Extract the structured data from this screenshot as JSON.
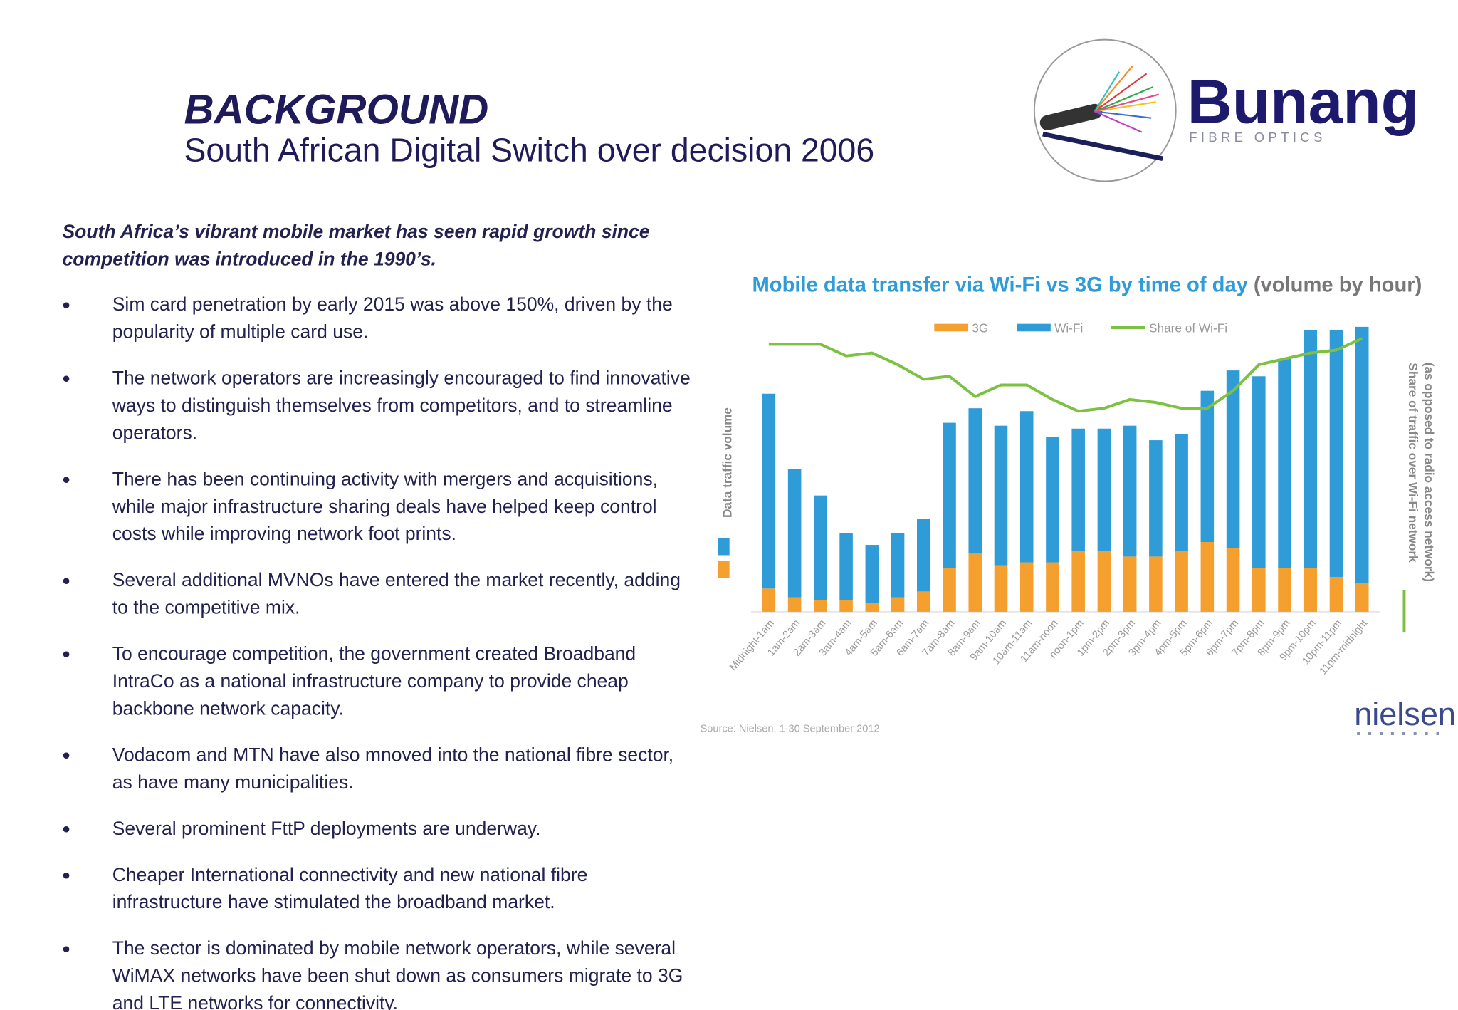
{
  "header": {
    "title": "BACKGROUND",
    "subtitle": "South African Digital Switch over decision 2006"
  },
  "logo": {
    "name": "Bunang",
    "tagline": "FIBRE OPTICS"
  },
  "intro": "South Africa’s vibrant mobile market has seen rapid growth since competition was introduced in the 1990’s.",
  "bullets": [
    "Sim card penetration by early 2015 was above 150%, driven by the popularity of multiple card use.",
    "The network operators are increasingly encouraged to find innovative ways to distinguish themselves from competitors, and to streamline operators.",
    "There has been continuing activity with mergers and acquisitions, while major infrastructure sharing deals have helped keep control costs while improving network foot prints.",
    "Several additional MVNOs have entered the market recently, adding to the competitive mix.",
    "To encourage competition, the government created Broadband IntraCo as a national infrastructure company to provide cheap backbone network capacity.",
    "Vodacom and MTN have also mnoved into the national fibre sector, as have many municipalities.",
    "Several prominent FttP deployments are underway.",
    "Cheaper International connectivity and new national fibre infrastructure have stimulated the broadband market.",
    "The sector is dominated by mobile network operators, while several WiMAX networks have been shut down as consumers migrate to 3G and LTE networks for connectivity."
  ],
  "chart_data": {
    "type": "bar",
    "stacked": true,
    "title": "Mobile data transfer via Wi-Fi vs 3G by time of day",
    "subtitle": "(volume by hour)",
    "ylabel": "Data traffic volume",
    "y2label": "Share of traffic over Wi-Fi network",
    "y2label_note": "(as opposed to radio access network)",
    "source": "Source: Nielsen, 1-30 September 2012",
    "brand": "nielsen",
    "categories": [
      "Midnight-1am",
      "1am-2am",
      "2am-3am",
      "3am-4am",
      "4am-5am",
      "5am-6am",
      "6am-7am",
      "7am-8am",
      "8am-9am",
      "9am-10am",
      "10am-11am",
      "11am-noon",
      "noon-1pm",
      "1pm-2pm",
      "2pm-3pm",
      "3pm-4pm",
      "4pm-5pm",
      "5pm-6pm",
      "6pm-7pm",
      "7pm-8pm",
      "8pm-9pm",
      "9pm-10pm",
      "10pm-11pm",
      "11pm-midnight"
    ],
    "ylim": [
      0,
      100
    ],
    "y2lim": [
      0,
      100
    ],
    "series": [
      {
        "name": "3G",
        "color": "#f5a02e",
        "values": [
          8,
          5,
          4,
          4,
          3,
          5,
          7,
          15,
          20,
          16,
          17,
          17,
          21,
          21,
          19,
          19,
          21,
          24,
          22,
          15,
          15,
          15,
          12,
          10
        ]
      },
      {
        "name": "Wi-Fi",
        "color": "#2f9bd7",
        "values": [
          67,
          44,
          36,
          23,
          20,
          22,
          25,
          50,
          50,
          48,
          52,
          43,
          42,
          42,
          45,
          40,
          40,
          52,
          61,
          66,
          72,
          82,
          85,
          88
        ]
      },
      {
        "name": "Share of Wi-Fi",
        "type": "line",
        "axis": "y2",
        "color": "#7cc142",
        "values": [
          92,
          92,
          92,
          88,
          89,
          85,
          80,
          81,
          74,
          78,
          78,
          73,
          69,
          70,
          73,
          72,
          70,
          70,
          76,
          85,
          87,
          89,
          90,
          94
        ]
      }
    ]
  }
}
